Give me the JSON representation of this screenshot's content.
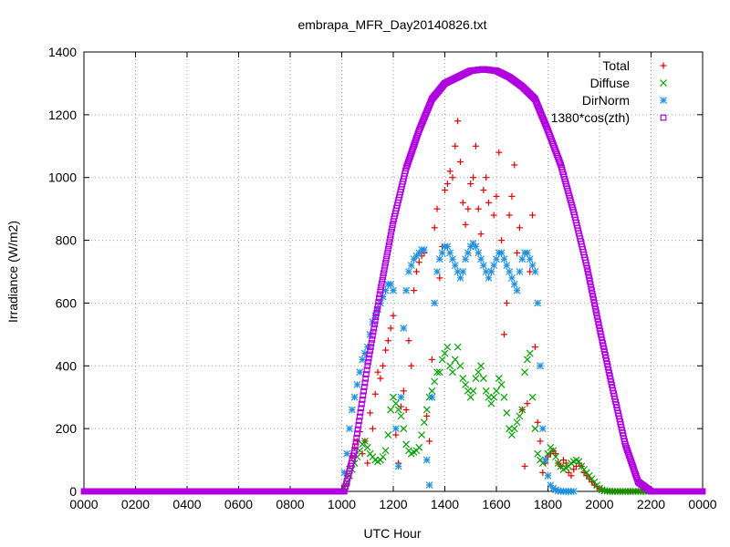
{
  "chart_data": {
    "type": "scatter",
    "title": "embrapa_MFR_Day20140826.txt",
    "xlabel": "UTC Hour",
    "ylabel": "Irradiance (W/m2)",
    "xlim": [
      0,
      24
    ],
    "ylim": [
      0,
      1400
    ],
    "x_ticks": [
      0,
      2,
      4,
      6,
      8,
      10,
      12,
      14,
      16,
      18,
      20,
      22,
      24
    ],
    "x_tick_labels": [
      "0000",
      "0200",
      "0400",
      "0600",
      "0800",
      "1000",
      "1200",
      "1400",
      "1600",
      "1800",
      "2000",
      "2200",
      "0000"
    ],
    "y_ticks": [
      0,
      200,
      400,
      600,
      800,
      1000,
      1200,
      1400
    ],
    "y_tick_labels": [
      "0",
      "200",
      "400",
      "600",
      "800",
      "1000",
      "1200",
      "1400"
    ],
    "grid": true,
    "legend_position": "top-right",
    "series": [
      {
        "name": "Total",
        "marker": "plus",
        "color": "#e00000",
        "x": [
          10.1,
          10.2,
          10.3,
          10.4,
          10.5,
          10.6,
          10.7,
          10.8,
          10.9,
          11.0,
          11.1,
          11.2,
          11.3,
          11.4,
          11.5,
          11.6,
          11.7,
          11.8,
          11.9,
          12.0,
          12.1,
          12.2,
          12.3,
          12.4,
          12.5,
          12.6,
          12.7,
          12.8,
          12.9,
          13.0,
          13.1,
          13.2,
          13.3,
          13.4,
          13.5,
          13.6,
          13.7,
          13.8,
          13.9,
          14.0,
          14.1,
          14.2,
          14.3,
          14.4,
          14.5,
          14.6,
          14.7,
          14.8,
          14.9,
          15.0,
          15.1,
          15.2,
          15.3,
          15.4,
          15.5,
          15.6,
          15.7,
          15.8,
          15.9,
          16.0,
          16.1,
          16.2,
          16.3,
          16.4,
          16.5,
          16.6,
          16.7,
          16.8,
          16.9,
          17.0,
          17.1,
          17.2,
          17.3,
          17.4,
          17.5,
          17.6,
          17.7,
          17.8,
          17.9,
          18.0,
          18.1,
          18.2,
          18.3,
          18.4,
          18.5,
          18.6,
          18.7,
          18.8,
          18.9,
          19.0,
          19.1,
          19.2,
          19.3,
          19.4,
          19.5,
          19.6,
          19.7,
          19.8,
          19.9,
          20.0,
          20.1,
          20.2,
          20.3,
          20.4,
          20.5,
          20.6,
          20.7,
          20.8,
          20.9,
          21.0,
          21.1,
          21.2,
          21.3,
          21.4,
          21.5,
          21.6,
          21.7,
          21.8,
          21.9
        ],
        "y": [
          20,
          50,
          80,
          110,
          140,
          160,
          190,
          120,
          160,
          90,
          250,
          200,
          310,
          380,
          360,
          400,
          450,
          480,
          520,
          560,
          180,
          90,
          270,
          320,
          260,
          480,
          400,
          640,
          700,
          730,
          750,
          760,
          240,
          160,
          420,
          840,
          900,
          680,
          780,
          960,
          980,
          1020,
          1000,
          1100,
          1180,
          1050,
          920,
          850,
          900,
          980,
          1000,
          1100,
          900,
          820,
          960,
          1000,
          920,
          700,
          880,
          940,
          1080,
          800,
          500,
          600,
          880,
          940,
          1040,
          760,
          840,
          260,
          80,
          280,
          700,
          880,
          460,
          220,
          160,
          60,
          90,
          110,
          120,
          130,
          120,
          90,
          80,
          100,
          90,
          60,
          50,
          70,
          80,
          90,
          80,
          60,
          50,
          40,
          30,
          20,
          15,
          10,
          5,
          3,
          2,
          1,
          1,
          0,
          0,
          0,
          0,
          0,
          0,
          0,
          0,
          0,
          0,
          0,
          0,
          0,
          0
        ]
      },
      {
        "name": "Diffuse",
        "marker": "cross",
        "color": "#00a000",
        "x": [
          10.1,
          10.2,
          10.3,
          10.4,
          10.5,
          10.6,
          10.7,
          10.8,
          10.9,
          11.0,
          11.1,
          11.2,
          11.3,
          11.4,
          11.5,
          11.6,
          11.7,
          11.8,
          11.9,
          12.0,
          12.1,
          12.2,
          12.3,
          12.4,
          12.5,
          12.6,
          12.7,
          12.8,
          12.9,
          13.0,
          13.1,
          13.2,
          13.3,
          13.4,
          13.5,
          13.6,
          13.7,
          13.8,
          13.9,
          14.0,
          14.1,
          14.2,
          14.3,
          14.4,
          14.5,
          14.6,
          14.7,
          14.8,
          14.9,
          15.0,
          15.1,
          15.2,
          15.3,
          15.4,
          15.5,
          15.6,
          15.7,
          15.8,
          15.9,
          16.0,
          16.1,
          16.2,
          16.3,
          16.4,
          16.5,
          16.6,
          16.7,
          16.8,
          16.9,
          17.0,
          17.1,
          17.2,
          17.3,
          17.4,
          17.5,
          17.6,
          17.7,
          17.8,
          17.9,
          18.0,
          18.1,
          18.2,
          18.3,
          18.4,
          18.5,
          18.6,
          18.7,
          18.8,
          18.9,
          19.0,
          19.1,
          19.2,
          19.3,
          19.4,
          19.5,
          19.6,
          19.7,
          19.8,
          19.9,
          20.0,
          20.1,
          20.2,
          20.3,
          20.4,
          20.5,
          20.6,
          20.7,
          20.8,
          20.9,
          21.0,
          21.1,
          21.2,
          21.3,
          21.4,
          21.5,
          21.6,
          21.7,
          21.8,
          21.9
        ],
        "y": [
          10,
          30,
          50,
          70,
          90,
          110,
          130,
          150,
          160,
          140,
          120,
          110,
          100,
          95,
          100,
          110,
          130,
          180,
          260,
          300,
          280,
          260,
          240,
          200,
          150,
          130,
          120,
          125,
          130,
          140,
          180,
          220,
          260,
          300,
          320,
          350,
          380,
          380,
          420,
          440,
          460,
          400,
          380,
          420,
          460,
          400,
          360,
          340,
          320,
          300,
          320,
          360,
          380,
          400,
          360,
          320,
          300,
          280,
          300,
          320,
          360,
          340,
          300,
          250,
          200,
          180,
          200,
          220,
          240,
          260,
          380,
          420,
          440,
          300,
          200,
          120,
          100,
          90,
          100,
          120,
          140,
          130,
          110,
          90,
          80,
          70,
          75,
          80,
          90,
          95,
          100,
          95,
          80,
          70,
          60,
          50,
          40,
          30,
          20,
          10,
          5,
          2,
          1,
          0,
          0,
          0,
          0,
          0,
          0,
          0,
          0,
          0,
          0,
          0,
          0,
          0,
          0,
          0,
          0
        ]
      },
      {
        "name": "DirNorm",
        "marker": "star",
        "color": "#2090e0",
        "x": [
          10.1,
          10.2,
          10.3,
          10.4,
          10.5,
          10.6,
          10.7,
          10.8,
          10.9,
          11.0,
          11.1,
          11.2,
          11.3,
          11.4,
          11.5,
          11.6,
          11.7,
          11.8,
          11.9,
          12.0,
          12.1,
          12.2,
          12.3,
          12.4,
          12.5,
          12.6,
          12.7,
          12.8,
          12.9,
          13.0,
          13.1,
          13.2,
          13.3,
          13.4,
          13.5,
          13.6,
          13.7,
          13.8,
          13.9,
          14.0,
          14.1,
          14.2,
          14.3,
          14.4,
          14.5,
          14.6,
          14.7,
          14.8,
          14.9,
          15.0,
          15.1,
          15.2,
          15.3,
          15.4,
          15.5,
          15.6,
          15.7,
          15.8,
          15.9,
          16.0,
          16.1,
          16.2,
          16.3,
          16.4,
          16.5,
          16.6,
          16.7,
          16.8,
          16.9,
          17.0,
          17.1,
          17.2,
          17.3,
          17.4,
          17.5,
          17.6,
          17.7,
          17.8,
          17.9,
          18.0,
          18.1,
          18.2,
          18.3,
          18.4,
          18.5,
          18.6,
          18.7,
          18.8,
          18.9,
          19.0
        ],
        "y": [
          60,
          120,
          200,
          260,
          300,
          340,
          380,
          420,
          440,
          460,
          500,
          540,
          560,
          580,
          600,
          620,
          640,
          660,
          660,
          640,
          200,
          80,
          300,
          520,
          640,
          700,
          720,
          740,
          750,
          760,
          770,
          770,
          100,
          20,
          300,
          600,
          700,
          740,
          760,
          780,
          780,
          760,
          740,
          720,
          700,
          680,
          700,
          740,
          760,
          780,
          790,
          780,
          760,
          740,
          720,
          700,
          680,
          700,
          720,
          740,
          760,
          760,
          740,
          720,
          700,
          680,
          660,
          640,
          700,
          740,
          760,
          760,
          740,
          720,
          700,
          600,
          400,
          200,
          100,
          50,
          20,
          10,
          5,
          2,
          0,
          0,
          0,
          0,
          0,
          0
        ]
      },
      {
        "name": "1380*cos(zth)",
        "marker": "square",
        "color": "#b000e0",
        "x": [
          0,
          1,
          2,
          3,
          4,
          5,
          6,
          7,
          8,
          9,
          10,
          10.1,
          10.5,
          11,
          11.5,
          12,
          12.5,
          13,
          13.5,
          14,
          14.5,
          15,
          15.5,
          16,
          16.5,
          17,
          17.5,
          18,
          18.5,
          19,
          19.5,
          20,
          20.5,
          21,
          21.5,
          22,
          22.1,
          23,
          24
        ],
        "y": [
          0,
          0,
          0,
          0,
          0,
          0,
          0,
          0,
          0,
          0,
          0,
          0,
          130,
          400,
          640,
          860,
          1030,
          1150,
          1250,
          1300,
          1320,
          1340,
          1345,
          1340,
          1320,
          1290,
          1250,
          1150,
          1040,
          890,
          720,
          520,
          330,
          150,
          30,
          0,
          0,
          0,
          0
        ]
      }
    ]
  }
}
